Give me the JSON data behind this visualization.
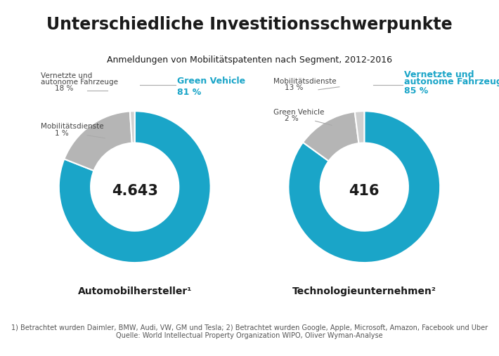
{
  "title": "Unterschiedliche Investitionsschwerpunkte",
  "subtitle": "Anmeldungen von Mobilitätspatenten nach Segment, 2012-2016",
  "background_color": "#ffffff",
  "teal_color": "#1aa5c8",
  "gray_color": "#b5b5b5",
  "light_gray_color": "#d0d0d0",
  "chart1": {
    "center_text": "4.643",
    "label": "Automobilhersteller¹",
    "segments": [
      {
        "label": "Green Vehicle",
        "pct": 81,
        "color": "#1aa5c8"
      },
      {
        "label": "Vernetzte und\nautonome Fahrzeuge",
        "pct": 18,
        "color": "#b5b5b5"
      },
      {
        "label": "Mobilitätsdienste",
        "pct": 1,
        "color": "#d0d0d0"
      }
    ]
  },
  "chart2": {
    "center_text": "416",
    "label": "Technologieunternehmen²",
    "segments": [
      {
        "label": "Vernetzte und\nautonome Fahrzeuge",
        "pct": 85,
        "color": "#1aa5c8"
      },
      {
        "label": "Mobilitätsdienste",
        "pct": 13,
        "color": "#b5b5b5"
      },
      {
        "label": "Green Vehicle",
        "pct": 2,
        "color": "#d0d0d0"
      }
    ]
  },
  "footnote_line1": "1) Betrachtet wurden Daimler, BMW, Audi, VW, GM und Tesla; 2) Betrachtet wurden Google, Apple, Microsoft, Amazon, Facebook und Uber",
  "footnote_line2": "Quelle: World Intellectual Property Organization WIPO, Oliver Wyman-Analyse"
}
